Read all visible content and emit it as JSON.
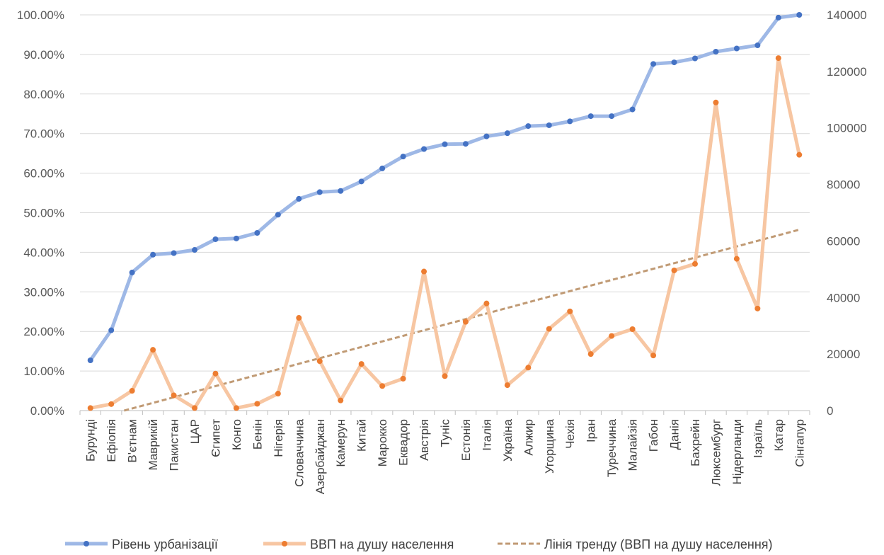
{
  "chart_data": {
    "type": "line",
    "categories": [
      "Бурунді",
      "Ефіопія",
      "В'єтнам",
      "Маврикій",
      "Пакистан",
      "ЦАР",
      "Єгипет",
      "Конго",
      "Бенін",
      "Нігерія",
      "Словаччина",
      "Азербайджан",
      "Камерун",
      "Китай",
      "Марокко",
      "Еквадор",
      "Австрія",
      "Туніс",
      "Естонія",
      "Італія",
      "Україна",
      "Алжир",
      "Угорщина",
      "Чехія",
      "Іран",
      "Туреччина",
      "Малайзія",
      "Габон",
      "Данія",
      "Бахрейн",
      "Люксембург",
      "Нідерланди",
      "Ізраїль",
      "Катар",
      "Сінгапур"
    ],
    "series": [
      {
        "name": "Рівень урбанізації",
        "axis": "left",
        "color": "#9eb8e6",
        "marker_color": "#4472c4",
        "values": [
          12.7,
          20.3,
          34.9,
          39.4,
          39.8,
          40.6,
          43.3,
          43.5,
          44.9,
          49.5,
          53.5,
          55.2,
          55.5,
          57.9,
          61.2,
          64.2,
          66.1,
          67.3,
          67.4,
          69.3,
          70.1,
          71.9,
          72.1,
          73.1,
          74.4,
          74.4,
          76.1,
          87.6,
          88.0,
          89.0,
          90.7,
          91.5,
          92.3,
          99.3,
          100.0
        ]
      },
      {
        "name": "ВВП на душу населення",
        "axis": "right",
        "color": "#f7c6a2",
        "marker_color": "#ed7d31",
        "values": [
          900,
          2300,
          7000,
          21500,
          5400,
          900,
          13100,
          900,
          2400,
          6000,
          32800,
          17500,
          3600,
          16500,
          8700,
          11300,
          49200,
          12200,
          31400,
          37900,
          9000,
          15200,
          28900,
          35100,
          20000,
          26400,
          28800,
          19500,
          49600,
          51900,
          109000,
          53700,
          36100,
          124700,
          90500
        ]
      },
      {
        "name": "Лінія тренду (ВВП на душу населення)",
        "axis": "right",
        "type": "trendline",
        "color": "#c09a74",
        "start_value": -3200,
        "end_value": 64000
      }
    ],
    "y_left": {
      "min": 0,
      "max": 100,
      "ticks": [
        "0.00%",
        "10.00%",
        "20.00%",
        "30.00%",
        "40.00%",
        "50.00%",
        "60.00%",
        "70.00%",
        "80.00%",
        "90.00%",
        "100.00%"
      ]
    },
    "y_right": {
      "min": 0,
      "max": 140000,
      "ticks": [
        "0",
        "20000",
        "40000",
        "60000",
        "80000",
        "100000",
        "120000",
        "140000"
      ]
    },
    "grid": "horizontal",
    "legend": "bottom"
  },
  "legend": {
    "urban": "Рівень урбанізації",
    "gdp": "ВВП на душу населення",
    "trend": "Лінія тренду (ВВП на душу населення)"
  }
}
